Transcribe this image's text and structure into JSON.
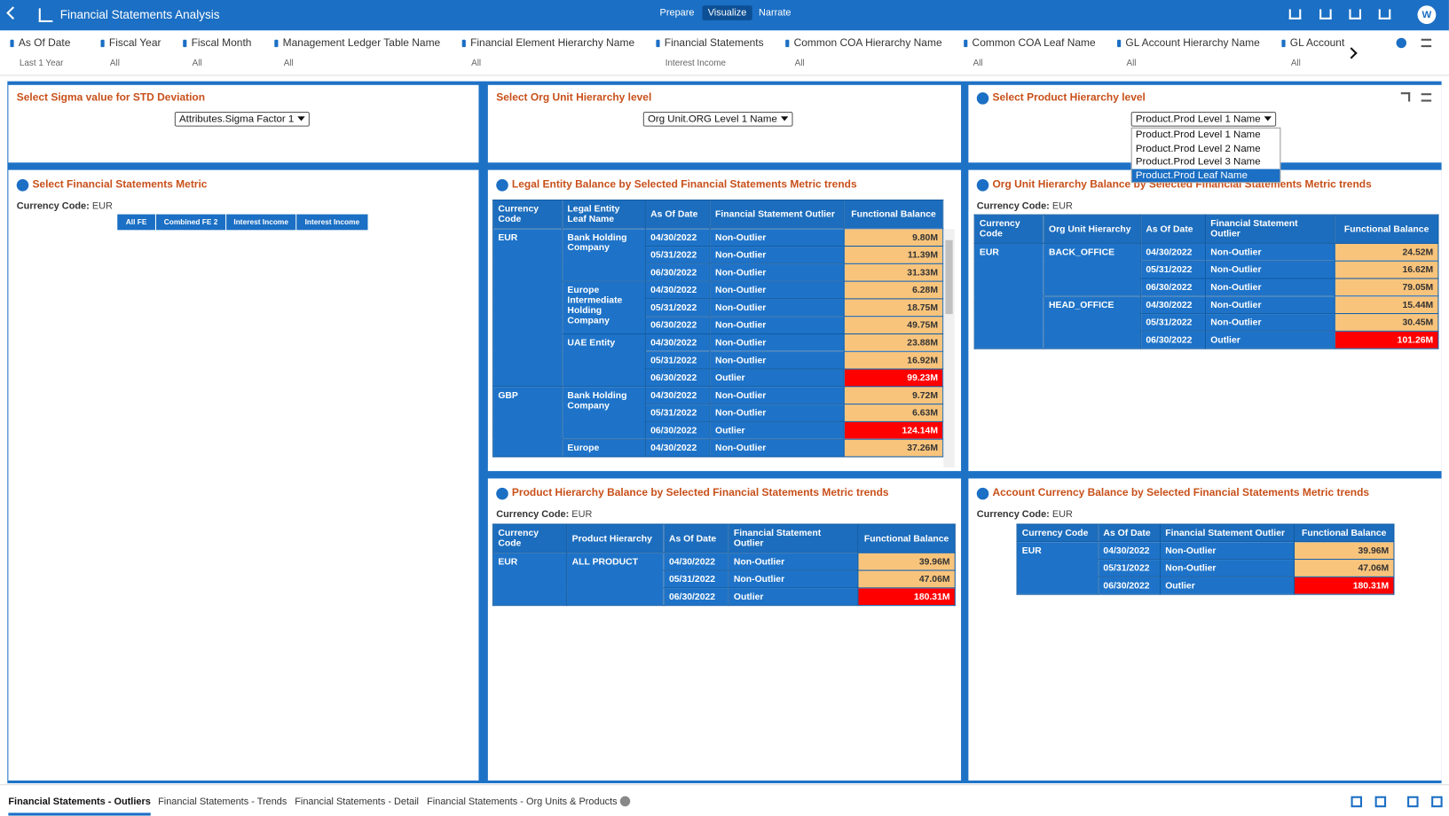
{
  "header": {
    "title": "Financial Statements Analysis",
    "tabs": [
      "Prepare",
      "Visualize",
      "Narrate"
    ],
    "active_tab": 1,
    "avatar": "W"
  },
  "filters": [
    {
      "label": "As Of Date",
      "value": "Last 1 Year"
    },
    {
      "label": "Fiscal Year",
      "value": "All"
    },
    {
      "label": "Fiscal Month",
      "value": "All"
    },
    {
      "label": "Management Ledger Table Name",
      "value": "All"
    },
    {
      "label": "Financial Element Hierarchy Name",
      "value": "All"
    },
    {
      "label": "Financial Statements",
      "value": "Interest Income"
    },
    {
      "label": "Common COA Hierarchy Name",
      "value": "All"
    },
    {
      "label": "Common COA Leaf Name",
      "value": "All"
    },
    {
      "label": "GL Account Hierarchy Name",
      "value": "All"
    },
    {
      "label": "GL Account",
      "value": "All"
    }
  ],
  "selectors": {
    "sigma": {
      "title": "Select Sigma value for STD Deviation",
      "selected": "Attributes.Sigma Factor 1"
    },
    "org": {
      "title": "Select Org Unit Hierarchy level",
      "selected": "Org Unit.ORG Level 1 Name"
    },
    "product": {
      "title": "Select Product Hierarchy level",
      "selected": "Product.Prod Level 1 Name",
      "options": [
        "Product.Prod Level 1 Name",
        "Product.Prod Level 2 Name",
        "Product.Prod Level 3 Name",
        "Product.Prod Leaf Name"
      ],
      "highlighted_option": 3
    }
  },
  "metric": {
    "title": "Select Financial Statements Metric",
    "currency_label": "Currency Code:",
    "currency": "EUR",
    "buttons": [
      "All FE",
      "Combined FE 2",
      "Interest Income",
      "Interest Income"
    ]
  },
  "table_colors": {
    "header": "#1c6dbd",
    "cell": "#1e73c8",
    "balance": "#f8c47c",
    "outlier": "#ff0000"
  },
  "tables": {
    "legal": {
      "title": "Legal Entity Balance by Selected Financial Statements Metric trends",
      "columns": [
        "Currency Code",
        "Legal Entity Leaf Name",
        "As Of Date",
        "Financial Statement Outlier",
        "Functional Balance"
      ],
      "rows": [
        [
          "EUR",
          "Bank Holding Company",
          "04/30/2022",
          "Non-Outlier",
          "9.80M"
        ],
        [
          null,
          null,
          "05/31/2022",
          "Non-Outlier",
          "11.39M"
        ],
        [
          null,
          null,
          "06/30/2022",
          "Non-Outlier",
          "31.33M"
        ],
        [
          null,
          "Europe Intermediate Holding Company",
          "04/30/2022",
          "Non-Outlier",
          "6.28M"
        ],
        [
          null,
          null,
          "05/31/2022",
          "Non-Outlier",
          "18.75M"
        ],
        [
          null,
          null,
          "06/30/2022",
          "Non-Outlier",
          "49.75M"
        ],
        [
          null,
          "UAE Entity",
          "04/30/2022",
          "Non-Outlier",
          "23.88M"
        ],
        [
          null,
          null,
          "05/31/2022",
          "Non-Outlier",
          "16.92M"
        ],
        [
          null,
          null,
          "06/30/2022",
          "Outlier",
          "99.23M"
        ],
        [
          "GBP",
          "Bank Holding Company",
          "04/30/2022",
          "Non-Outlier",
          "9.72M"
        ],
        [
          null,
          null,
          "05/31/2022",
          "Non-Outlier",
          "6.63M"
        ],
        [
          null,
          null,
          "06/30/2022",
          "Outlier",
          "124.14M"
        ],
        [
          null,
          "Europe",
          "04/30/2022",
          "Non-Outlier",
          "37.26M"
        ]
      ]
    },
    "org": {
      "title": "Org Unit Hierarchy Balance by Selected Financial Statements Metric trends",
      "currency_label": "Currency Code:",
      "currency": "EUR",
      "columns": [
        "Currency Code",
        "Org Unit Hierarchy",
        "As Of Date",
        "Financial Statement Outlier",
        "Functional Balance"
      ],
      "rows": [
        [
          "EUR",
          "BACK_OFFICE",
          "04/30/2022",
          "Non-Outlier",
          "24.52M"
        ],
        [
          null,
          null,
          "05/31/2022",
          "Non-Outlier",
          "16.62M"
        ],
        [
          null,
          null,
          "06/30/2022",
          "Non-Outlier",
          "79.05M"
        ],
        [
          null,
          "HEAD_OFFICE",
          "04/30/2022",
          "Non-Outlier",
          "15.44M"
        ],
        [
          null,
          null,
          "05/31/2022",
          "Non-Outlier",
          "30.45M"
        ],
        [
          null,
          null,
          "06/30/2022",
          "Outlier",
          "101.26M"
        ]
      ]
    },
    "product": {
      "title": "Product Hierarchy Balance by Selected Financial Statements Metric trends",
      "currency_label": "Currency Code:",
      "currency": "EUR",
      "columns": [
        "Currency Code",
        "Product Hierarchy",
        "As Of Date",
        "Financial Statement Outlier",
        "Functional Balance"
      ],
      "rows": [
        [
          "EUR",
          "ALL PRODUCT",
          "04/30/2022",
          "Non-Outlier",
          "39.96M"
        ],
        [
          null,
          null,
          "05/31/2022",
          "Non-Outlier",
          "47.06M"
        ],
        [
          null,
          null,
          "06/30/2022",
          "Outlier",
          "180.31M"
        ]
      ]
    },
    "account": {
      "title": "Account Currency Balance by Selected Financial Statements Metric trends",
      "currency_label": "Currency Code:",
      "currency": "EUR",
      "columns": [
        "Currency Code",
        "As Of Date",
        "Financial Statement Outlier",
        "Functional Balance"
      ],
      "rows": [
        [
          "EUR",
          "04/30/2022",
          "Non-Outlier",
          "39.96M"
        ],
        [
          null,
          "05/31/2022",
          "Non-Outlier",
          "47.06M"
        ],
        [
          null,
          "06/30/2022",
          "Outlier",
          "180.31M"
        ]
      ]
    }
  },
  "bottom_tabs": [
    "Financial Statements - Outliers",
    "Financial Statements - Trends",
    "Financial Statements - Detail",
    "Financial Statements - Org Units & Products"
  ],
  "active_bottom_tab": 0
}
